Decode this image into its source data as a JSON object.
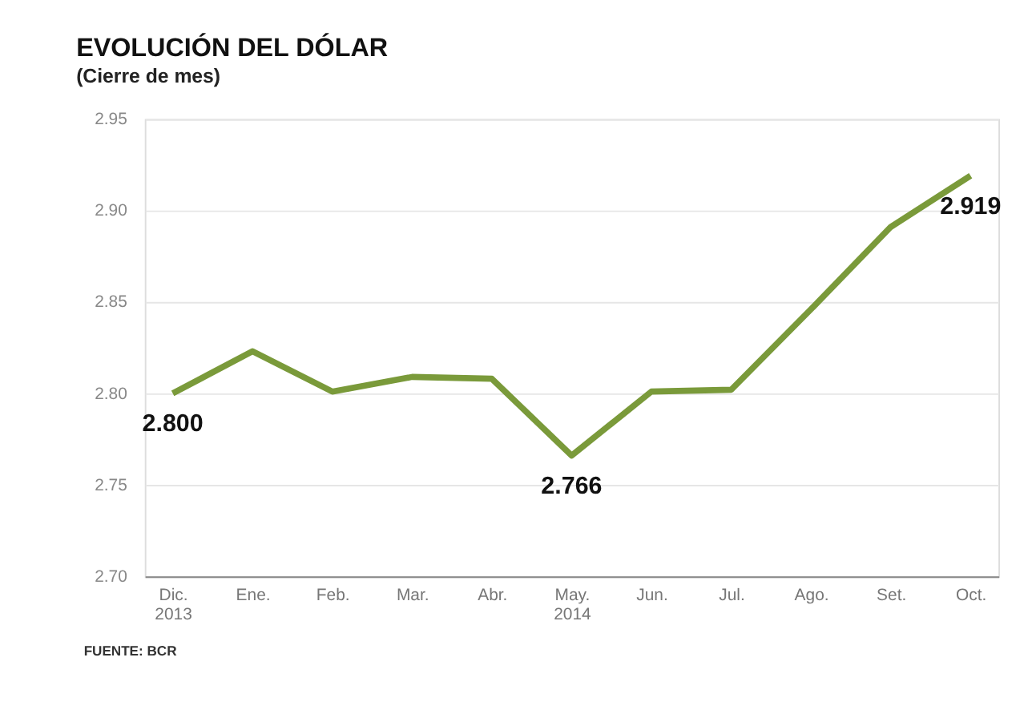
{
  "chart_data": {
    "type": "line",
    "title": "EVOLUCIÓN DEL DÓLAR",
    "subtitle": "(Cierre de mes)",
    "categories": [
      "Dic.\n2013",
      "Ene.",
      "Feb.",
      "Mar.",
      "Abr.",
      "May.\n2014",
      "Jun.",
      "Jul.",
      "Ago.",
      "Set.",
      "Oct."
    ],
    "series": [
      {
        "color": "#7a9a3a",
        "values": [
          2.8,
          2.823,
          2.801,
          2.809,
          2.808,
          2.766,
          2.801,
          2.802,
          2.846,
          2.891,
          2.919
        ],
        "value_labels": [
          "2.800",
          null,
          null,
          null,
          null,
          "2.766",
          null,
          null,
          null,
          null,
          "2.919"
        ]
      }
    ],
    "ylim": [
      2.7,
      2.95
    ],
    "yticks": [
      {
        "value": 2.7,
        "label": "2.70"
      },
      {
        "value": 2.75,
        "label": "2.75"
      },
      {
        "value": 2.8,
        "label": "2.80"
      },
      {
        "value": 2.85,
        "label": "2.85"
      },
      {
        "value": 2.9,
        "label": "2.90"
      },
      {
        "value": 2.95,
        "label": "2.95"
      }
    ],
    "grid": "y",
    "marker": "none",
    "line_style": "solid",
    "annotations": [
      "FUENTE: BCR"
    ]
  }
}
